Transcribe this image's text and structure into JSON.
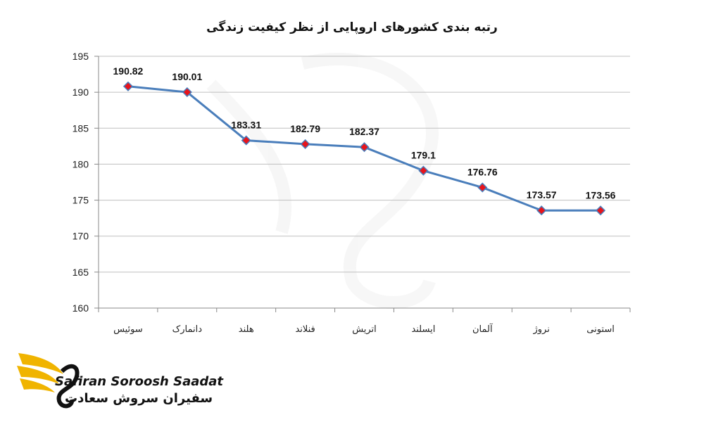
{
  "chart_data": {
    "type": "line",
    "title": "رتبه بندی کشورهای اروپایی از نظر کیفیت زندگی",
    "categories": [
      "سوئیس",
      "دانمارک",
      "هلند",
      "فنلاند",
      "اتریش",
      "ایسلند",
      "آلمان",
      "نروژ",
      "استونی"
    ],
    "values": [
      190.82,
      190.01,
      183.31,
      182.79,
      182.37,
      179.1,
      176.76,
      173.57,
      173.56
    ],
    "data_labels": [
      "190.82",
      "190.01",
      "183.31",
      "182.79",
      "182.37",
      "179.1",
      "176.76",
      "173.57",
      "173.56"
    ],
    "y_ticks": [
      "160",
      "165",
      "170",
      "175",
      "180",
      "185",
      "190",
      "195"
    ],
    "ylim": [
      160,
      195
    ],
    "xlabel": "",
    "ylabel": "",
    "grid": true,
    "legend": "none",
    "colors": {
      "line": "#4a7ebb",
      "marker_fill": "#e8141b",
      "marker_stroke": "#4a7ebb",
      "grid": "#bfbfbf",
      "brand_gold": "#f0b400"
    }
  },
  "brand": {
    "name_en": "Safiran Soroosh Saadat",
    "name_fa": "سفیران سروش سعادت",
    "logo_icon": "gold-phoenix-logo-icon"
  }
}
